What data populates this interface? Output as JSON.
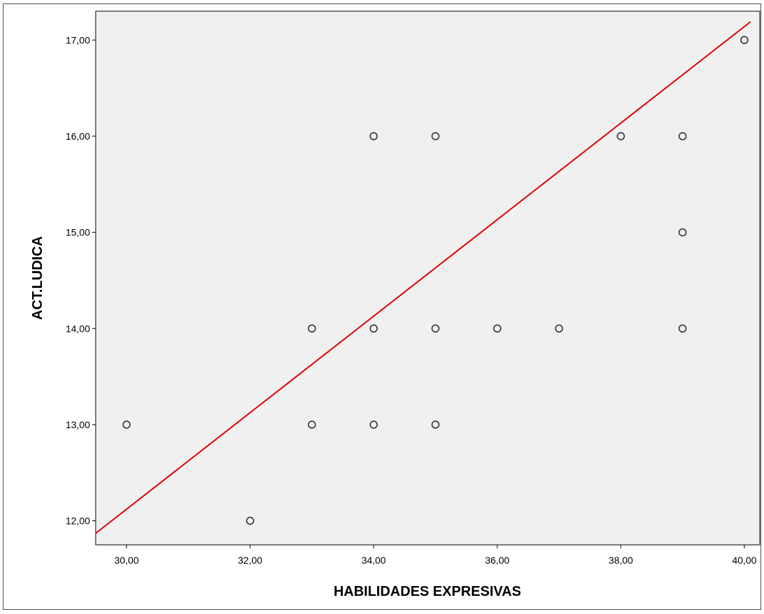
{
  "chart_data": {
    "type": "scatter",
    "xlabel": "HABILIDADES EXPRESIVAS",
    "ylabel": "ACT.LUDICA",
    "xlim": [
      29.5,
      40.25
    ],
    "ylim": [
      11.75,
      17.3
    ],
    "x_ticks": [
      "30,00",
      "32,00",
      "34,00",
      "36,00",
      "38,00",
      "40,00"
    ],
    "x_tick_values": [
      30,
      32,
      34,
      36,
      38,
      40
    ],
    "y_ticks": [
      "12,00",
      "13,00",
      "14,00",
      "15,00",
      "16,00",
      "17,00"
    ],
    "y_tick_values": [
      12,
      13,
      14,
      15,
      16,
      17
    ],
    "points": [
      {
        "x": 30,
        "y": 13
      },
      {
        "x": 32,
        "y": 12
      },
      {
        "x": 33,
        "y": 14
      },
      {
        "x": 33,
        "y": 13
      },
      {
        "x": 34,
        "y": 16
      },
      {
        "x": 34,
        "y": 14
      },
      {
        "x": 34,
        "y": 13
      },
      {
        "x": 35,
        "y": 16
      },
      {
        "x": 35,
        "y": 14
      },
      {
        "x": 35,
        "y": 13
      },
      {
        "x": 36,
        "y": 14
      },
      {
        "x": 37,
        "y": 14
      },
      {
        "x": 38,
        "y": 16
      },
      {
        "x": 39,
        "y": 16
      },
      {
        "x": 39,
        "y": 15
      },
      {
        "x": 39,
        "y": 14
      },
      {
        "x": 40,
        "y": 17
      }
    ],
    "fit_line": {
      "x0": 29.5,
      "y0": 11.87,
      "x1": 40.1,
      "y1": 17.19
    },
    "grid": false,
    "colors": {
      "plot_background": "#f0f0f0",
      "fit_line": "#e00000",
      "marker_stroke": "#333333"
    }
  }
}
